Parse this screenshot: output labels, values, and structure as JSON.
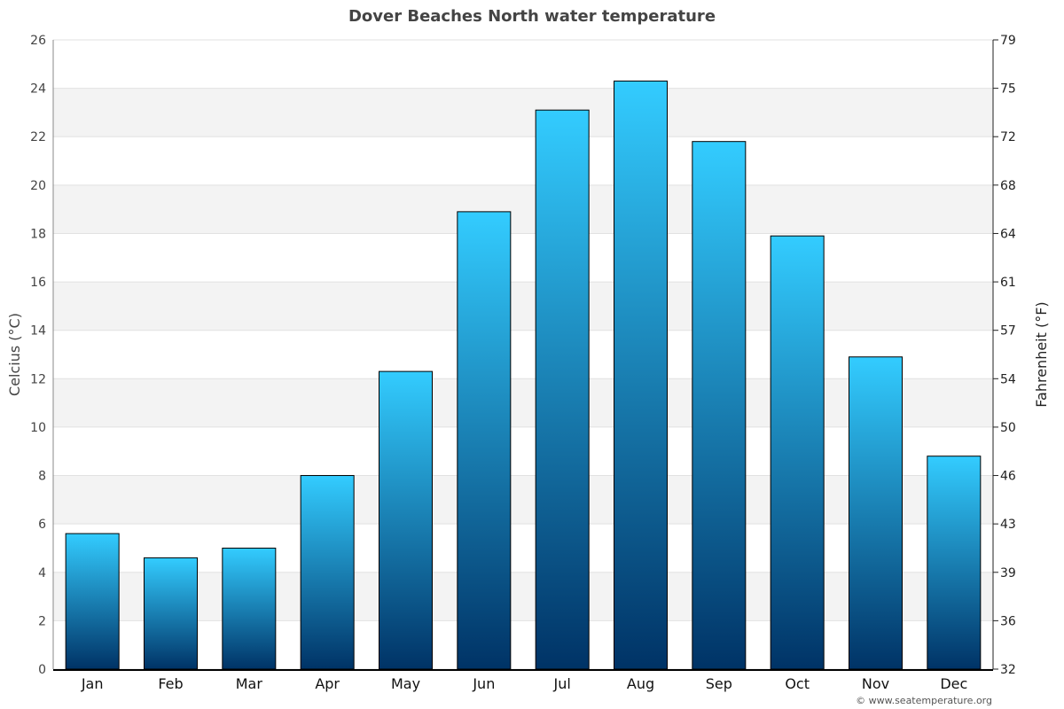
{
  "chart_data": {
    "type": "bar",
    "title": "Dover Beaches North water temperature",
    "ylabel": "Celcius (°C)",
    "ylabel_right": "Fahrenheit (°F)",
    "categories": [
      "Jan",
      "Feb",
      "Mar",
      "Apr",
      "May",
      "Jun",
      "Jul",
      "Aug",
      "Sep",
      "Oct",
      "Nov",
      "Dec"
    ],
    "values": [
      5.6,
      4.6,
      5.0,
      8.0,
      12.3,
      18.9,
      23.1,
      24.3,
      21.8,
      17.9,
      12.9,
      8.8
    ],
    "ylim": [
      0,
      26
    ],
    "yticks": [
      0,
      2,
      4,
      6,
      8,
      10,
      12,
      14,
      16,
      18,
      20,
      22,
      24,
      26
    ],
    "yticks_right": [
      "32",
      "36",
      "39",
      "43",
      "46",
      "50",
      "54",
      "57",
      "61",
      "64",
      "68",
      "72",
      "75",
      "79"
    ],
    "grid": true,
    "colors": {
      "bar_top": "#33ccff",
      "bar_bottom": "#003366",
      "band": "#f3f3f3"
    }
  },
  "credit": "© www.seatemperature.org"
}
